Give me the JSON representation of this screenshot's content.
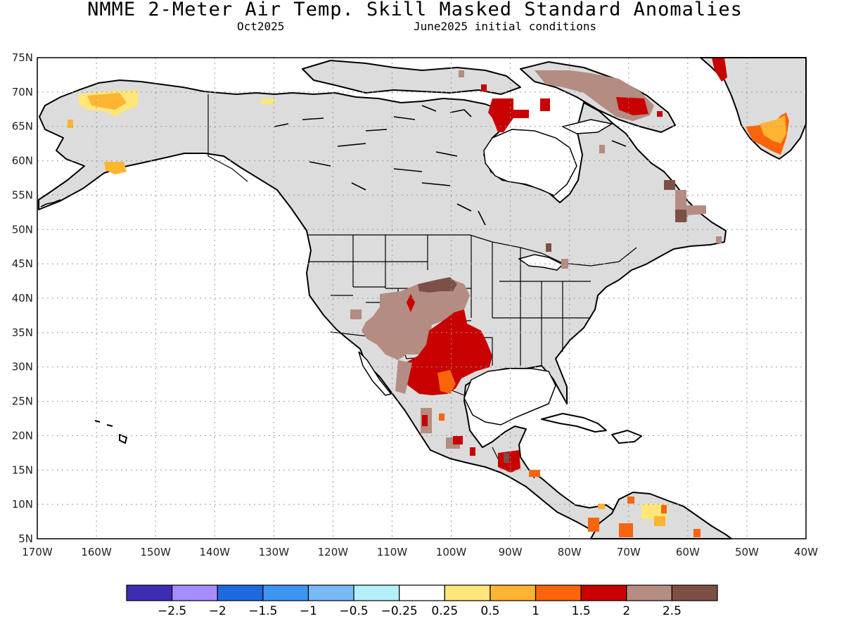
{
  "title": "NMME 2-Meter Air Temp. Skill Masked Standard Anomalies",
  "subtitle_left": "Oct2025",
  "subtitle_right": "June2025 initial conditions",
  "map": {
    "lon_range": [
      -170,
      -40
    ],
    "lat_range": [
      5,
      75
    ],
    "lat_ticks": [
      "75N",
      "70N",
      "65N",
      "60N",
      "55N",
      "50N",
      "45N",
      "40N",
      "35N",
      "30N",
      "25N",
      "20N",
      "15N",
      "10N",
      "5N"
    ],
    "lon_ticks": [
      "170W",
      "160W",
      "150W",
      "140W",
      "130W",
      "120W",
      "110W",
      "100W",
      "90W",
      "80W",
      "70W",
      "60W",
      "50W",
      "40W"
    ],
    "grid": "dotted"
  },
  "colorbar": {
    "colors": [
      "#3d2db5",
      "#a58cff",
      "#1e6be0",
      "#3c96f0",
      "#78b9f5",
      "#b4f0fa",
      "#ffffff",
      "#ffe678",
      "#ffb432",
      "#fa640a",
      "#c80000",
      "#b48c82",
      "#7d5046"
    ],
    "labels": [
      "-2.5",
      "-2",
      "-1.5",
      "-1",
      "-0.5",
      "-0.25",
      "0.25",
      "0.5",
      "1",
      "1.5",
      "2",
      "2.5"
    ]
  }
}
